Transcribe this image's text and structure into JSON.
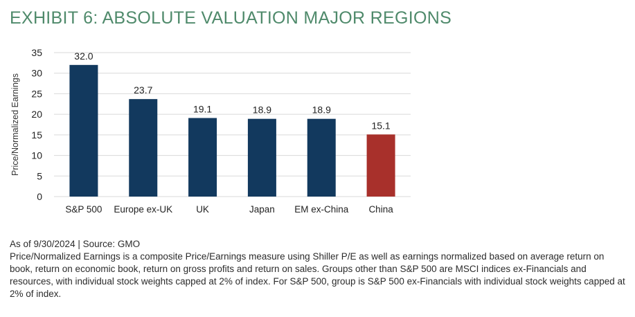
{
  "title": "EXHIBIT 6: ABSOLUTE VALUATION MAJOR REGIONS",
  "chart_data": {
    "type": "bar",
    "ylabel": "Price/Normalized Earnings",
    "xlabel": "",
    "ylim": [
      0,
      35
    ],
    "yticks": [
      0,
      5,
      10,
      15,
      20,
      25,
      30,
      35
    ],
    "grid": true,
    "categories": [
      "S&P 500",
      "Europe ex-UK",
      "UK",
      "Japan",
      "EM ex-China",
      "China"
    ],
    "values": [
      32.0,
      23.7,
      19.1,
      18.9,
      18.9,
      15.1
    ],
    "value_labels": [
      "32.0",
      "23.7",
      "19.1",
      "18.9",
      "18.9",
      "15.1"
    ],
    "bar_colors": [
      "#12395e",
      "#12395e",
      "#12395e",
      "#12395e",
      "#12395e",
      "#a8302b"
    ]
  },
  "notes": {
    "source": "As of 9/30/2024 | Source: GMO",
    "description": "Price/Normalized Earnings is a composite Price/Earnings measure using Shiller P/E as well as earnings normalized based on average return on book, return on economic book, return on gross profits and return on sales. Groups other than S&P 500 are MSCI indices ex-Financials and resources, with individual stock weights capped at 2% of index. For S&P 500, group is S&P 500 ex-Financials with individual stock weights capped at 2% of index."
  },
  "colors": {
    "title": "#4f8a6b",
    "bar": "#12395e",
    "highlight": "#a8302b",
    "grid": "#d9d9d9"
  }
}
